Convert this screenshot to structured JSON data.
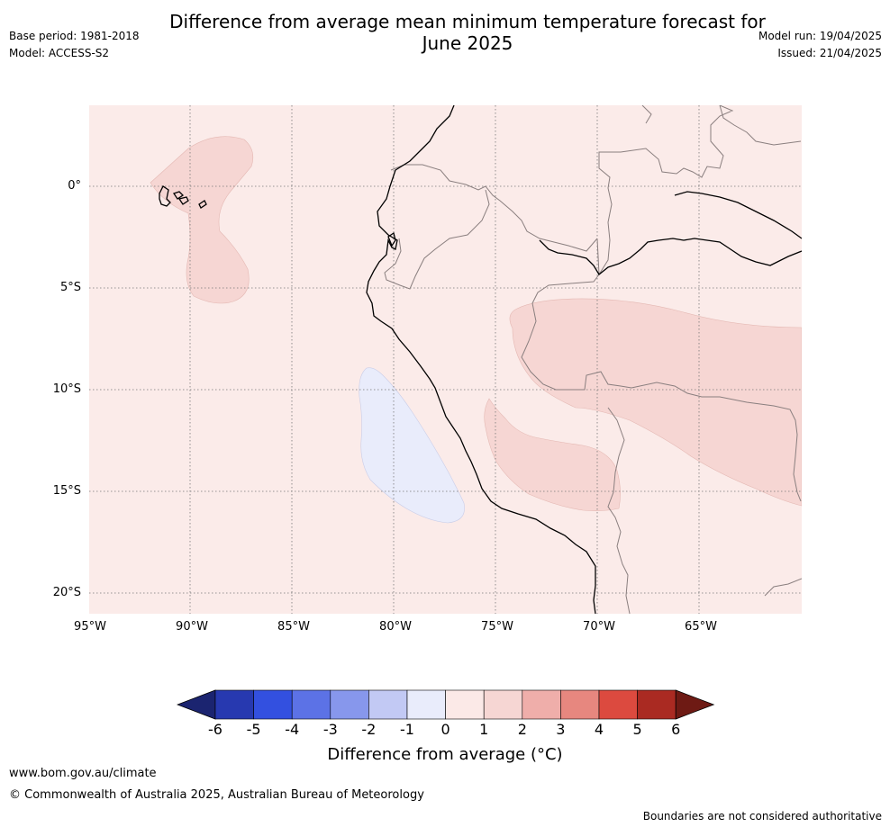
{
  "title_line1": "Difference from average mean minimum temperature forecast for",
  "title_line2": "June 2025",
  "base_period": "Base period: 1981-2018",
  "model": "Model: ACCESS-S2",
  "model_run": "Model run: 19/04/2025",
  "issued": "Issued: 21/04/2025",
  "lat_labels": [
    "0°",
    "5°S",
    "10°S",
    "15°S",
    "20°S"
  ],
  "lon_labels": [
    "95°W",
    "90°W",
    "85°W",
    "80°W",
    "75°W",
    "70°W",
    "65°W"
  ],
  "colorbar": {
    "ticks": [
      "-6",
      "-5",
      "-4",
      "-3",
      "-2",
      "-1",
      "0",
      "1",
      "2",
      "3",
      "4",
      "5",
      "6"
    ],
    "colors": [
      "#1b2470",
      "#2739b0",
      "#3350e0",
      "#5c72e6",
      "#8797ec",
      "#c2c9f4",
      "#e9ecfb",
      "#fbe9e7",
      "#f6d6d3",
      "#efaeaa",
      "#e7877f",
      "#dc4a3f",
      "#aa2a22",
      "#6e1a14"
    ],
    "title": "Difference from average (°C)"
  },
  "footer_url": "www.bom.gov.au/climate",
  "footer_copyright": "© Commonwealth of Australia 2025, Australian Bureau of Meteorology",
  "footer_note": "Boundaries are not considered authoritative",
  "map_fill": {
    "background": "#fbebe9",
    "positive_1_2": "#f6d6d3",
    "negative_0_1": "#e9ecfb"
  }
}
